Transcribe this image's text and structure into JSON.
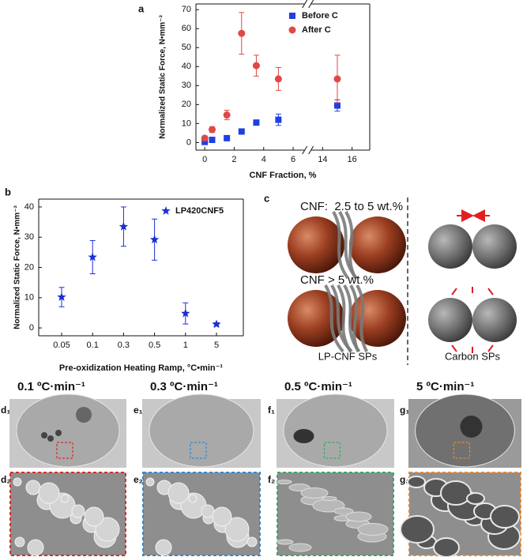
{
  "chart_data": [
    {
      "type": "scatter",
      "panel_label": "a",
      "xlabel": "CNF Fraction, %",
      "ylabel": "Normalized Static Force, N•mm⁻³",
      "xlim": [
        -0.6,
        17.2
      ],
      "x_break": [
        7,
        13
      ],
      "xticks": [
        0,
        2,
        4,
        6,
        14,
        16
      ],
      "ylim": [
        -4,
        73
      ],
      "yticks": [
        0,
        10,
        20,
        30,
        40,
        50,
        60,
        70
      ],
      "legend": "upper right",
      "series": [
        {
          "name": "Before C",
          "color": "#1f3fe0",
          "marker": "square",
          "x": [
            0,
            0.5,
            1.5,
            2.5,
            3.5,
            5,
            15
          ],
          "values": [
            0.3,
            1.4,
            2.3,
            5.8,
            10.5,
            12,
            19.5
          ],
          "errors": [
            0.3,
            0.5,
            0.5,
            0.5,
            1.2,
            3,
            3
          ]
        },
        {
          "name": "After C",
          "color": "#e04848",
          "marker": "circle",
          "x": [
            0,
            0.5,
            1.5,
            2.5,
            3.5,
            5,
            15
          ],
          "values": [
            2.3,
            6.8,
            14.5,
            57.5,
            40.5,
            33.5,
            33.5
          ],
          "errors": [
            1,
            1.5,
            2.5,
            11,
            5.5,
            6,
            12.5
          ]
        }
      ]
    },
    {
      "type": "scatter",
      "panel_label": "b",
      "xlabel": "Pre-oxidization Heating Ramp, °C•min⁻¹",
      "ylabel": "Normalized Static Force, N•mm⁻³",
      "categories": [
        "0.05",
        "0.1",
        "0.3",
        "0.5",
        "1",
        "5"
      ],
      "ylim": [
        -2.6,
        42.6
      ],
      "yticks": [
        0,
        10,
        20,
        30,
        40
      ],
      "legend": "upper right",
      "series": [
        {
          "name": "LP420CNF5",
          "color": "#1a2fd6",
          "marker": "star",
          "values": [
            10.2,
            23.4,
            33.5,
            29.2,
            4.8,
            1.2
          ],
          "errors": [
            3.2,
            5.5,
            6.5,
            6.8,
            3.5,
            0.5
          ]
        }
      ]
    }
  ],
  "diagram": {
    "label": "c",
    "rows": [
      "CNF:  2.5 to 5 wt.%",
      "CNF > 5 wt.%"
    ],
    "captions": [
      "LP-CNF SPs",
      "Carbon SPs"
    ]
  },
  "micrographs": [
    {
      "title": "0.1 ºC·min⁻¹",
      "top_label": "d₁",
      "bottom_label": "d₂",
      "color": "#d0312d"
    },
    {
      "title": "0.3 ºC·min⁻¹",
      "top_label": "e₁",
      "bottom_label": "e₂",
      "color": "#3a87c8"
    },
    {
      "title": "0.5 ºC·min⁻¹",
      "top_label": "f₁",
      "bottom_label": "f₂",
      "color": "#3aa860"
    },
    {
      "title": "5 ºC·min⁻¹",
      "top_label": "g₁",
      "bottom_label": "g₂",
      "color": "#e08a3c"
    }
  ]
}
